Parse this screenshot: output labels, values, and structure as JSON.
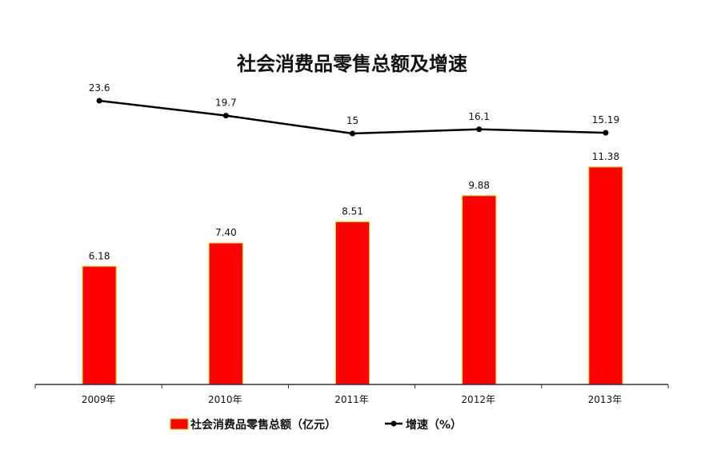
{
  "chart_data": {
    "type": "bar",
    "title": "社会消费品零售总额及增速",
    "categories": [
      "2009年",
      "2010年",
      "2011年",
      "2012年",
      "2013年"
    ],
    "series": [
      {
        "name": "社会消费品零售总额（亿元）",
        "type": "bar",
        "values": [
          6.18,
          7.4,
          8.51,
          9.88,
          11.38
        ],
        "labels": [
          "6.18",
          "7.40",
          "8.51",
          "9.88",
          "11.38"
        ],
        "color": "#ff0000"
      },
      {
        "name": "增速（%）",
        "type": "line",
        "values": [
          23.6,
          19.7,
          15,
          16.1,
          15.19
        ],
        "labels": [
          "23.6",
          "19.7",
          "15",
          "16.1",
          "15.19"
        ],
        "color": "#000000"
      }
    ],
    "grid": false,
    "legend": "bottom"
  }
}
